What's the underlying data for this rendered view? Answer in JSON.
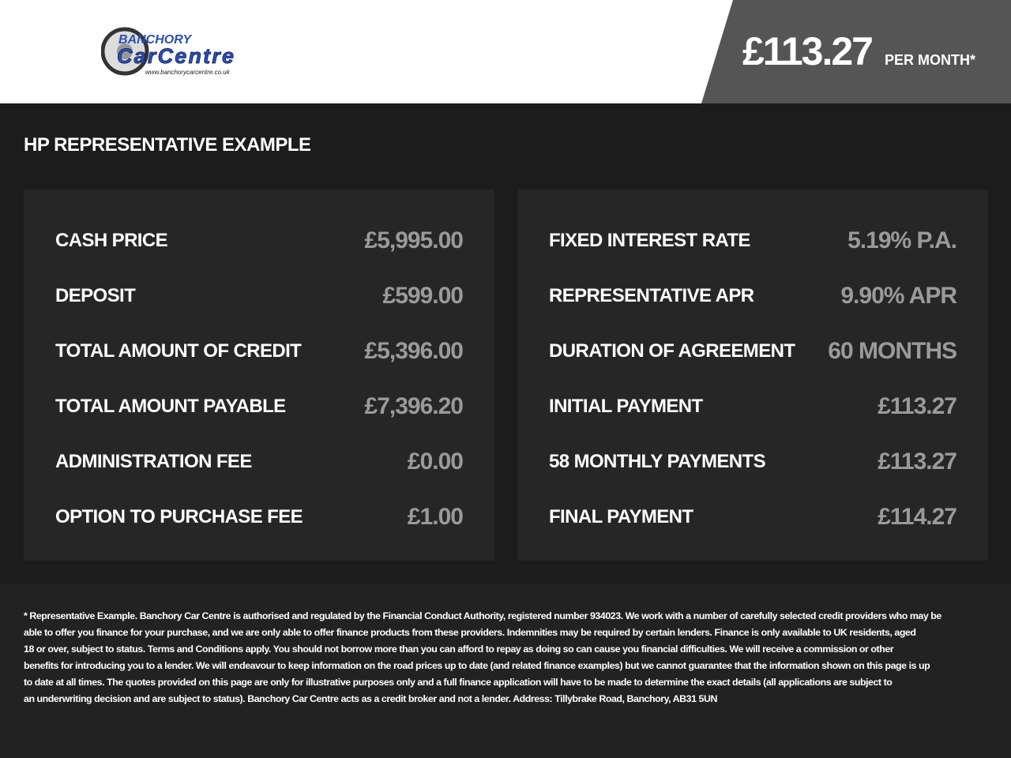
{
  "header": {
    "logo_text": "BANCHORY CarCentre www.banchorycarcentre.co.uk",
    "price": "£113.27",
    "per_month": "PER MONTH*"
  },
  "title": "HP REPRESENTATIVE EXAMPLE",
  "left_rows": [
    {
      "label": "CASH PRICE",
      "value": "£5,995.00"
    },
    {
      "label": "DEPOSIT",
      "value": "£599.00"
    },
    {
      "label": "TOTAL AMOUNT OF CREDIT",
      "value": "£5,396.00"
    },
    {
      "label": "TOTAL AMOUNT PAYABLE",
      "value": "£7,396.20"
    },
    {
      "label": "ADMINISTRATION FEE",
      "value": "£0.00"
    },
    {
      "label": "OPTION TO PURCHASE FEE",
      "value": "£1.00"
    }
  ],
  "right_rows": [
    {
      "label": "FIXED INTEREST RATE",
      "value": "5.19% P.A."
    },
    {
      "label": "REPRESENTATIVE APR",
      "value": "9.90% APR"
    },
    {
      "label": "DURATION OF AGREEMENT",
      "value": "60 MONTHS"
    },
    {
      "label": "INITIAL PAYMENT",
      "value": "£113.27"
    },
    {
      "label": "58 MONTHLY PAYMENTS",
      "value": "£113.27"
    },
    {
      "label": "FINAL PAYMENT",
      "value": "£114.27"
    }
  ],
  "footer_lines": [
    "* Representative Example. Banchory Car Centre is authorised and regulated by the Financial Conduct Authority, registered number 934023. We work with a number of carefully selected credit providers who may be",
    "able to offer you finance for your purchase, and we are only able to offer finance products from these providers. Indemnities may be required by certain lenders. Finance is only available to UK residents, aged",
    "18 or over, subject to status. Terms and Conditions apply. You should not borrow more than you can afford to repay as doing so can cause you financial difficulties. We will receive a commission or other",
    "benefits for introducing you to a lender. We will endeavour to keep information on the road prices up to date (and related finance examples) but we cannot guarantee that the information shown on this page is up",
    "to date at all times. The quotes provided on this page are only for illustrative purposes only and a full finance application will have to be made to determine the exact details (all applications are subject to",
    "an underwriting decision and are subject to status). Banchory Car Centre acts as a credit broker and not a lender. Address: Tillybrake Road, Banchory, AB31 5UN"
  ]
}
